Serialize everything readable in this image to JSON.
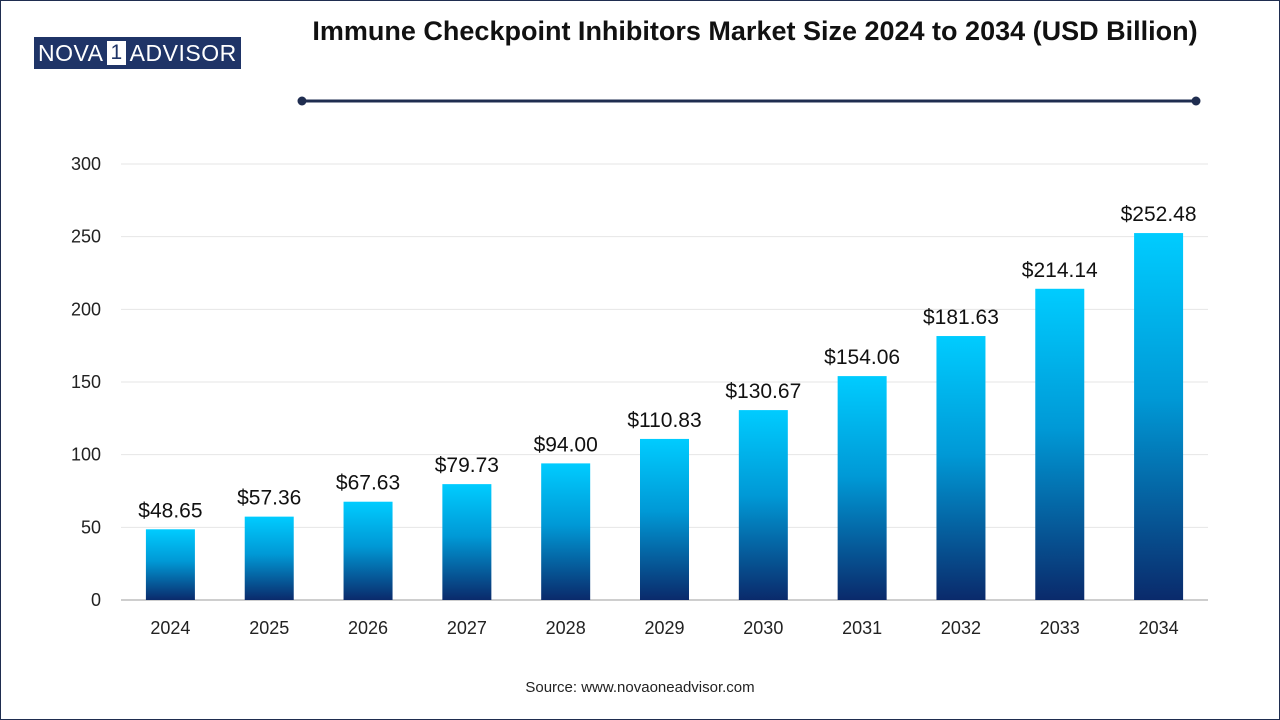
{
  "logo": {
    "part1": "NOVA",
    "part2": "1",
    "part3": "ADVISOR"
  },
  "source": "Source: www.novaoneadvisor.com",
  "colors": {
    "bar_top": "#00ccff",
    "bar_bottom": "#0a2a6b",
    "rule": "#1f2d50",
    "grid": "#e6e6e6"
  },
  "chart_data": {
    "type": "bar",
    "title": "Immune Checkpoint Inhibitors Market Size 2024 to 2034 (USD Billion)",
    "xlabel": "",
    "ylabel": "",
    "categories": [
      "2024",
      "2025",
      "2026",
      "2027",
      "2028",
      "2029",
      "2030",
      "2031",
      "2032",
      "2033",
      "2034"
    ],
    "values": [
      48.65,
      57.36,
      67.63,
      79.73,
      94.0,
      110.83,
      130.67,
      154.06,
      181.63,
      214.14,
      252.48
    ],
    "data_labels": [
      "$48.65",
      "$57.36",
      "$67.63",
      "$79.73",
      "$94.00",
      "$110.83",
      "$130.67",
      "$154.06",
      "$181.63",
      "$214.14",
      "$252.48"
    ],
    "ylim": [
      0,
      300
    ],
    "yticks": [
      0,
      50,
      100,
      150,
      200,
      250,
      300
    ],
    "grid": true,
    "legend": "none"
  }
}
